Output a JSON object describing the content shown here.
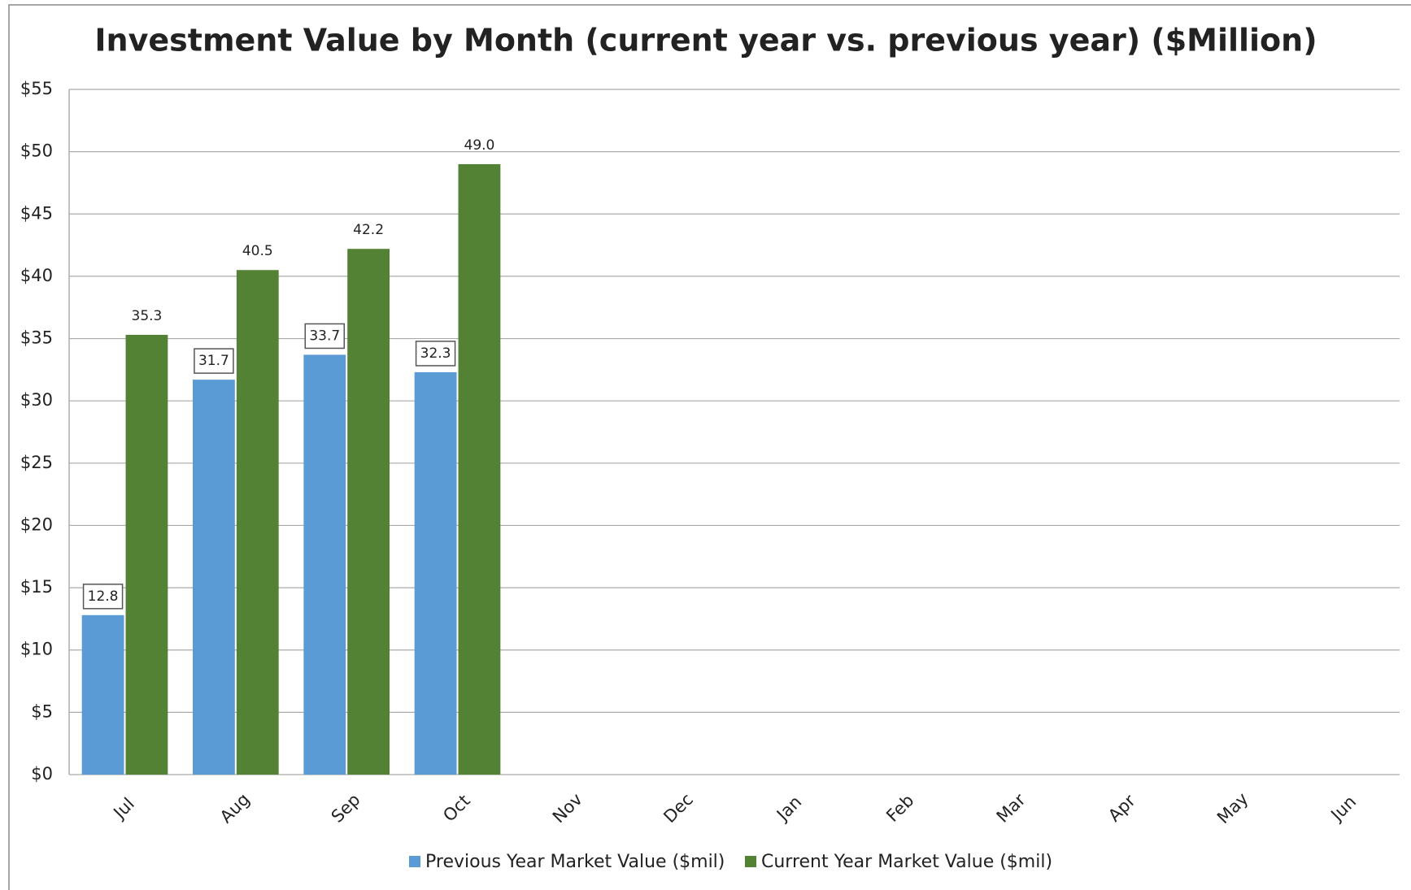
{
  "chart_data": {
    "type": "bar",
    "title": "Investment Value by Month (current year vs. previous year) ($Million)",
    "categories": [
      "Jul",
      "Aug",
      "Sep",
      "Oct",
      "Nov",
      "Dec",
      "Jan",
      "Feb",
      "Mar",
      "Apr",
      "May",
      "Jun"
    ],
    "series": [
      {
        "name": "Previous Year Market Value ($mil)",
        "color": "#5b9bd5",
        "values": [
          12.8,
          31.7,
          33.7,
          32.3,
          null,
          null,
          null,
          null,
          null,
          null,
          null,
          null
        ]
      },
      {
        "name": "Current Year Market Value ($mil)",
        "color": "#548235",
        "values": [
          35.3,
          40.5,
          42.2,
          49.0,
          null,
          null,
          null,
          null,
          null,
          null,
          null,
          null
        ],
        "value_labels": [
          "35.3",
          "40.5",
          "42.2",
          "49.0",
          null,
          null,
          null,
          null,
          null,
          null,
          null,
          null
        ]
      }
    ],
    "ylim": [
      0,
      55
    ],
    "yticks": [
      {
        "value": 0,
        "label": "$0"
      },
      {
        "value": 5,
        "label": "$5"
      },
      {
        "value": 10,
        "label": "$10"
      },
      {
        "value": 15,
        "label": "$15"
      },
      {
        "value": 20,
        "label": "$20"
      },
      {
        "value": 25,
        "label": "$25"
      },
      {
        "value": 30,
        "label": "$30"
      },
      {
        "value": 35,
        "label": "$35"
      },
      {
        "value": 40,
        "label": "$40"
      },
      {
        "value": 45,
        "label": "$45"
      },
      {
        "value": 50,
        "label": "$50"
      },
      {
        "value": 55,
        "label": "$55"
      }
    ],
    "grid": true,
    "legend": "bottom"
  }
}
